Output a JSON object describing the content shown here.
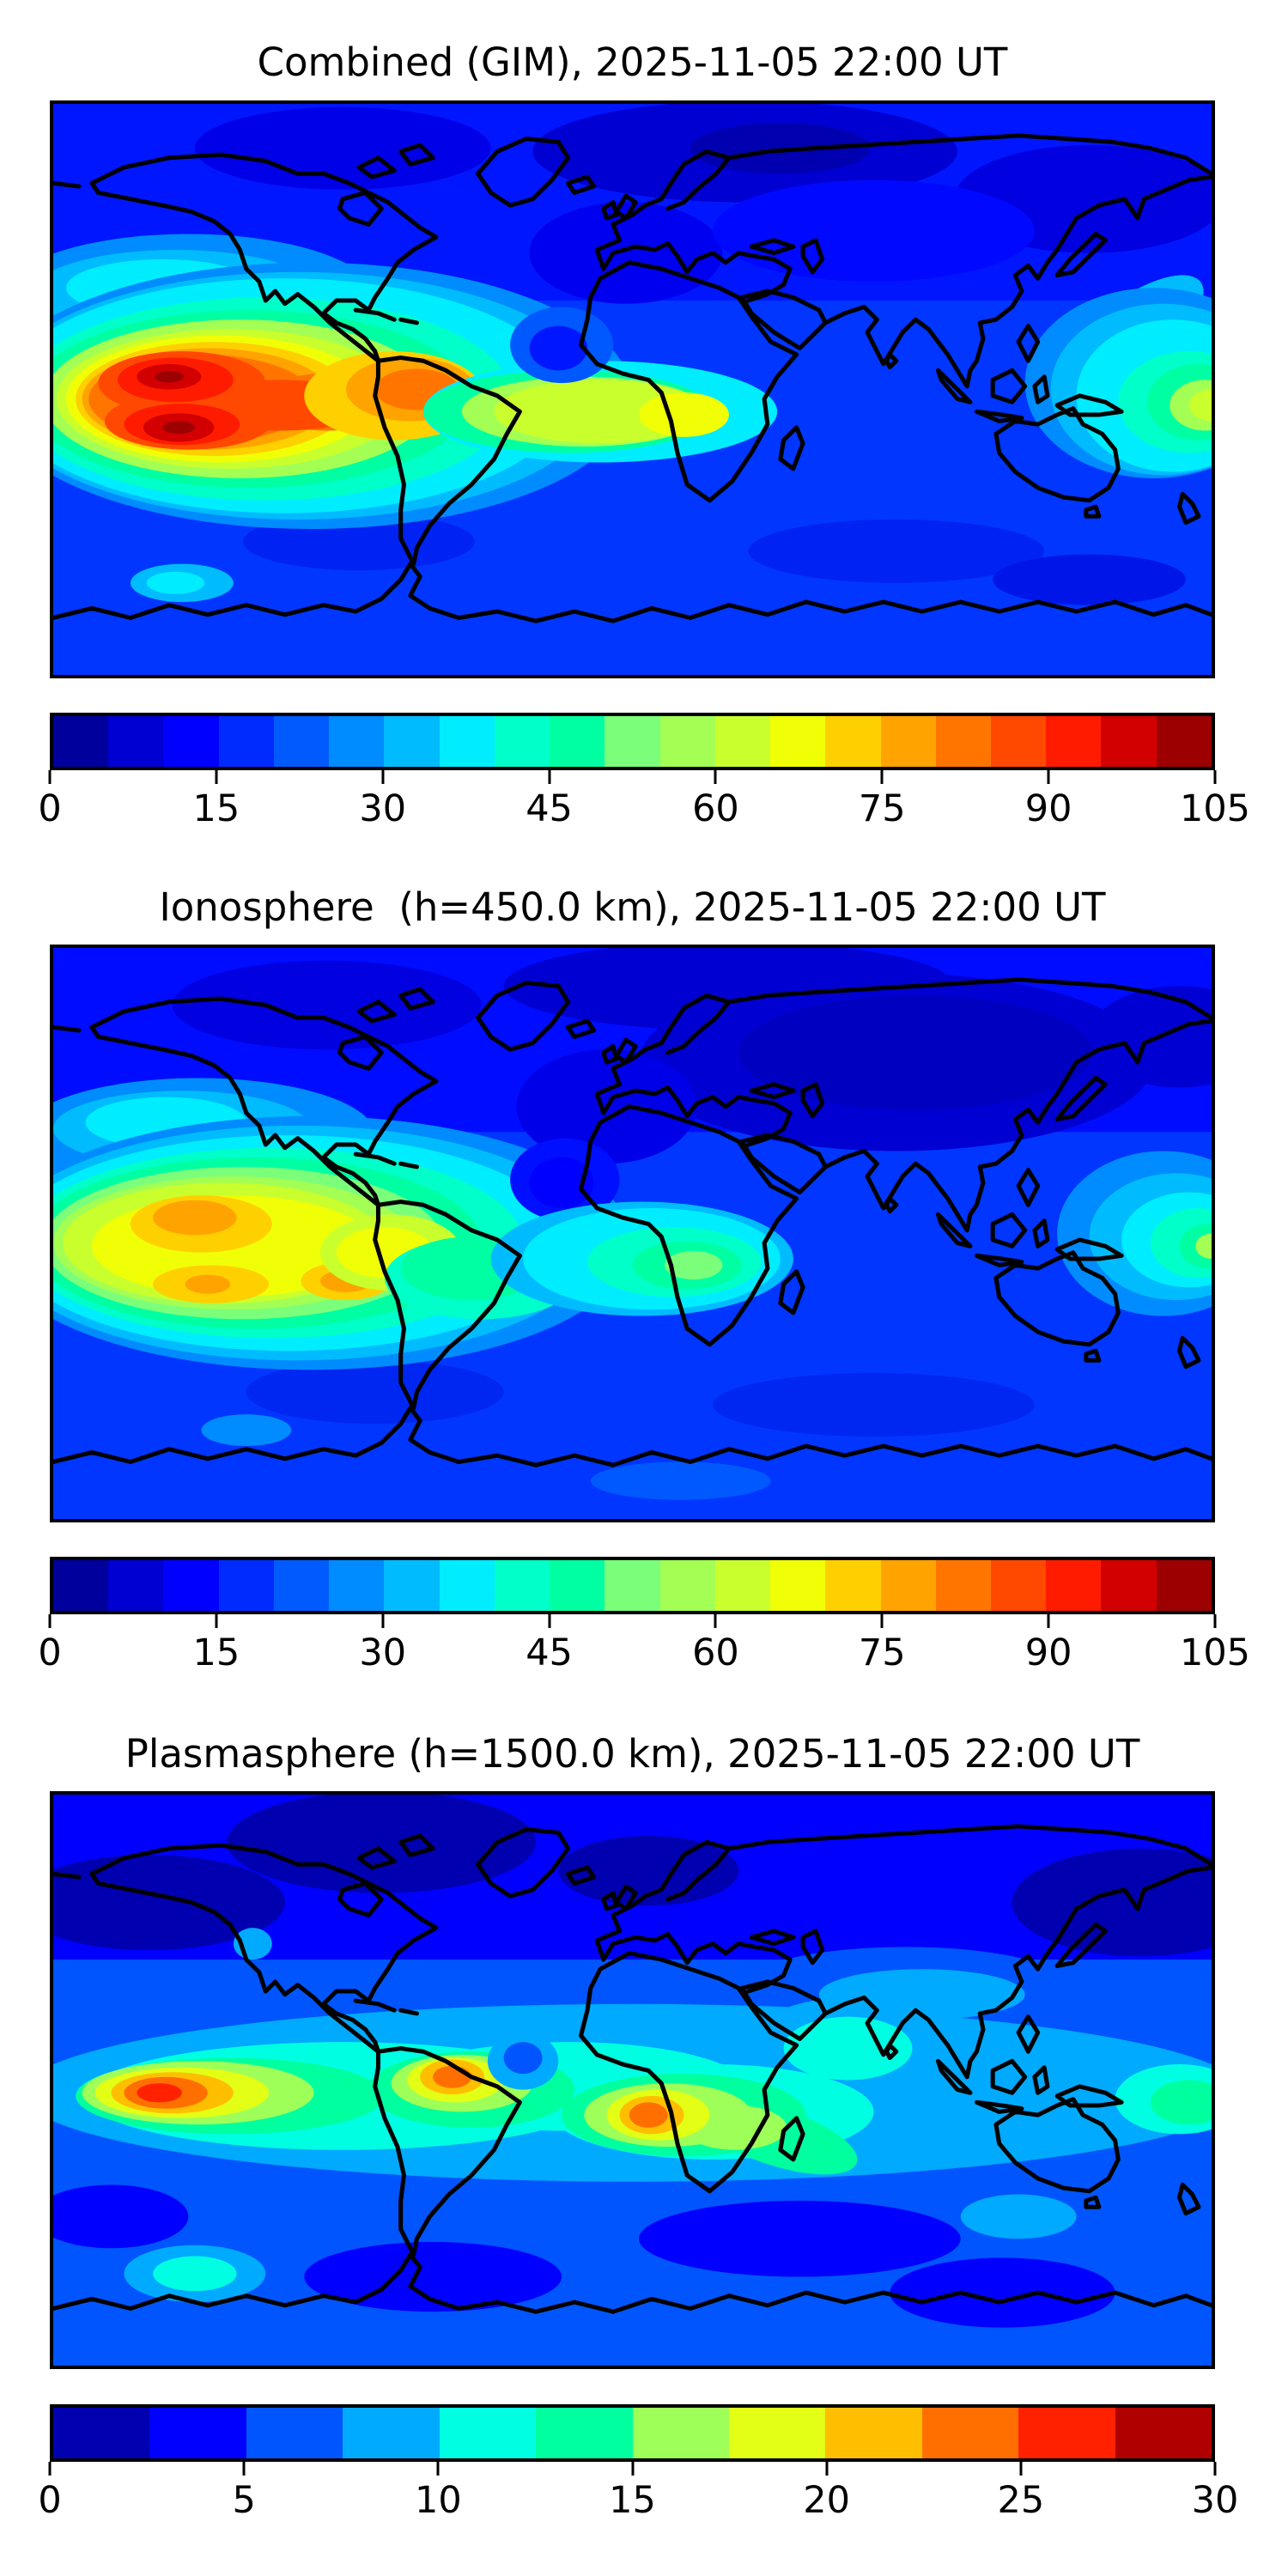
{
  "figure": {
    "background": "#ffffff",
    "coastline_color": "#000000"
  },
  "panels": [
    {
      "id": "combined",
      "title": "Combined (GIM), 2025-11-05 22:00 UT",
      "colorbar": {
        "min": 0,
        "max": 105,
        "ticks": [
          0,
          15,
          30,
          45,
          60,
          75,
          90,
          105
        ],
        "colors": [
          "#00009c",
          "#0000d2",
          "#0000ff",
          "#002bff",
          "#005bff",
          "#008cff",
          "#00bcff",
          "#00edff",
          "#00ffc9",
          "#00ffa3",
          "#7bff7b",
          "#a3ff54",
          "#c9ff2d",
          "#f1ff06",
          "#ffd000",
          "#ffa300",
          "#ff7500",
          "#ff4900",
          "#ff1b00",
          "#d20000",
          "#9c0000"
        ]
      }
    },
    {
      "id": "ionosphere",
      "title": "Ionosphere  (h=450.0 km), 2025-11-05 22:00 UT",
      "colorbar": {
        "min": 0,
        "max": 105,
        "ticks": [
          0,
          15,
          30,
          45,
          60,
          75,
          90,
          105
        ],
        "colors": [
          "#00009c",
          "#0000d2",
          "#0000ff",
          "#002bff",
          "#005bff",
          "#008cff",
          "#00bcff",
          "#00edff",
          "#00ffc9",
          "#00ffa3",
          "#7bff7b",
          "#a3ff54",
          "#c9ff2d",
          "#f1ff06",
          "#ffd000",
          "#ffa300",
          "#ff7500",
          "#ff4900",
          "#ff1b00",
          "#d20000",
          "#9c0000"
        ]
      }
    },
    {
      "id": "plasmasphere",
      "title": "Plasmasphere (h=1500.0 km), 2025-11-05 22:00 UT",
      "colorbar": {
        "min": 0,
        "max": 30,
        "ticks": [
          0,
          5,
          10,
          15,
          20,
          25,
          30
        ],
        "colors": [
          "#0000b0",
          "#0000ff",
          "#0055ff",
          "#00aaff",
          "#00ffe2",
          "#00ff9e",
          "#9eff59",
          "#e2ff15",
          "#ffbf00",
          "#ff6f00",
          "#ff2100",
          "#b00000"
        ]
      }
    }
  ],
  "chart_data": [
    {
      "type": "heatmap",
      "title": "Combined (GIM), 2025-11-05 22:00 UT",
      "projection": "equirectangular",
      "lon_range": [
        -180,
        180
      ],
      "lat_range": [
        -90,
        90
      ],
      "colormap": "jet",
      "value_range": [
        0,
        105
      ],
      "contour_level_step": 5,
      "colorbar_ticks": [
        0,
        15,
        30,
        45,
        60,
        75,
        90,
        105
      ],
      "features": [
        {
          "label": "primary-maximum-east-pacific-north-crest",
          "lon": -144,
          "lat": 4,
          "value": 100
        },
        {
          "label": "primary-maximum-east-pacific-south-crest",
          "lon": -141,
          "lat": -12,
          "value": 103
        },
        {
          "label": "south-america-lobe",
          "lon": -67,
          "lat": 0,
          "value": 82
        },
        {
          "label": "africa-equatorial-maximum",
          "lon": 16,
          "lat": -8,
          "value": 67
        },
        {
          "label": "west-pacific-dateline-maximum",
          "lon": 178,
          "lat": -5,
          "value": 65
        },
        {
          "label": "north-pacific-midlat-band",
          "lon": -145,
          "lat": 30,
          "value": 35
        },
        {
          "label": "equatorial-atlantic-saddle-minimum",
          "lon": -23,
          "lat": 13,
          "value": 12
        },
        {
          "label": "arctic-siberia-minimum",
          "lon": 45,
          "lat": 76,
          "value": 4
        }
      ]
    },
    {
      "type": "heatmap",
      "title": "Ionosphere  (h=450.0 km), 2025-11-05 22:00 UT",
      "projection": "equirectangular",
      "lon_range": [
        -180,
        180
      ],
      "lat_range": [
        -90,
        90
      ],
      "colormap": "jet",
      "value_range": [
        0,
        105
      ],
      "contour_level_step": 5,
      "colorbar_ticks": [
        0,
        15,
        30,
        45,
        60,
        75,
        90,
        105
      ],
      "features": [
        {
          "label": "primary-maximum-east-pacific-north-crest",
          "lon": -135,
          "lat": 8,
          "value": 78
        },
        {
          "label": "south-crest",
          "lon": -134,
          "lat": -17,
          "value": 77
        },
        {
          "label": "peru-coast-lobe",
          "lon": -90,
          "lat": -16,
          "value": 77
        },
        {
          "label": "africa-equatorial-maximum",
          "lon": 19,
          "lat": -10,
          "value": 52
        },
        {
          "label": "west-pacific-dateline-maximum",
          "lon": 180,
          "lat": -4,
          "value": 55
        },
        {
          "label": "asia-minimum",
          "lon": 88,
          "lat": 57,
          "value": 5
        }
      ]
    },
    {
      "type": "heatmap",
      "title": "Plasmasphere (h=1500.0 km), 2025-11-05 22:00 UT",
      "projection": "equirectangular",
      "lon_range": [
        -180,
        180
      ],
      "lat_range": [
        -90,
        90
      ],
      "colormap": "jet",
      "value_range": [
        0,
        30
      ],
      "contour_level_step": 2.5,
      "colorbar_ticks": [
        0,
        5,
        10,
        15,
        20,
        25,
        30
      ],
      "features": [
        {
          "label": "primary-maximum-central-pacific",
          "lon": -147,
          "lat": -4,
          "value": 27
        },
        {
          "label": "north-brazil-maximum",
          "lon": -56,
          "lat": 1,
          "value": 24
        },
        {
          "label": "west-africa-maximum",
          "lon": 5,
          "lat": -11,
          "value": 24
        },
        {
          "label": "india-cyan-patch",
          "lon": 67,
          "lat": 12,
          "value": 11
        },
        {
          "label": "dateline-green-patch",
          "lon": 173,
          "lat": -7,
          "value": 14
        },
        {
          "label": "atlantic-equatorial-dip",
          "lon": -34,
          "lat": 7,
          "value": 6
        },
        {
          "label": "high-latitude-minimum",
          "lon": -78,
          "lat": 75,
          "value": 2
        }
      ]
    }
  ]
}
